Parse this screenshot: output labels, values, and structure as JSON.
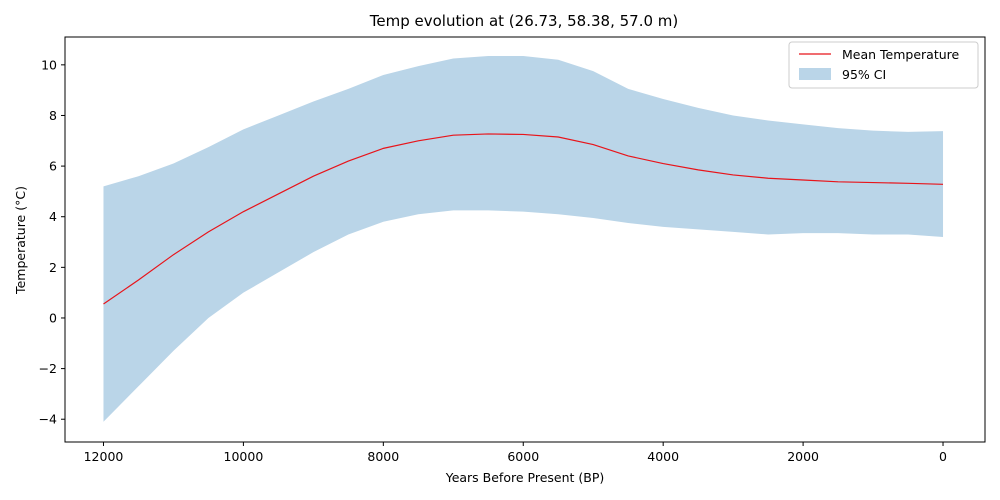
{
  "chart_data": {
    "type": "area",
    "title": "Temp evolution at (26.73, 58.38, 57.0 m)",
    "xlabel": "Years Before Present (BP)",
    "ylabel": "Temperature (°C)",
    "x_reversed": true,
    "xlim": [
      12550,
      -600
    ],
    "ylim": [
      -4.9,
      11.1
    ],
    "xticks": [
      12000,
      10000,
      8000,
      6000,
      4000,
      2000,
      0
    ],
    "yticks": [
      -4,
      -2,
      0,
      2,
      4,
      6,
      8,
      10
    ],
    "grid": false,
    "legend_position": "top-right",
    "x": [
      12000,
      11500,
      11000,
      10500,
      10000,
      9500,
      9000,
      8500,
      8000,
      7500,
      7000,
      6500,
      6000,
      5500,
      5000,
      4500,
      4000,
      3500,
      3000,
      2500,
      2000,
      1500,
      1000,
      500,
      0
    ],
    "series": [
      {
        "name": "Mean Temperature",
        "kind": "line",
        "color": "#e8141a",
        "values": [
          0.55,
          1.5,
          2.5,
          3.4,
          4.2,
          4.9,
          5.6,
          6.2,
          6.7,
          7.0,
          7.22,
          7.27,
          7.25,
          7.15,
          6.85,
          6.4,
          6.1,
          5.85,
          5.65,
          5.52,
          5.45,
          5.38,
          5.35,
          5.32,
          5.28
        ]
      },
      {
        "name": "95% CI",
        "kind": "band",
        "color": "#bad5e8",
        "lower": [
          -4.1,
          -2.7,
          -1.3,
          0.0,
          1.0,
          1.8,
          2.6,
          3.3,
          3.8,
          4.1,
          4.25,
          4.25,
          4.2,
          4.1,
          3.95,
          3.75,
          3.6,
          3.5,
          3.4,
          3.3,
          3.35,
          3.35,
          3.3,
          3.3,
          3.2
        ],
        "upper": [
          5.2,
          5.6,
          6.1,
          6.75,
          7.45,
          8.0,
          8.55,
          9.05,
          9.6,
          9.95,
          10.25,
          10.35,
          10.35,
          10.2,
          9.75,
          9.05,
          8.65,
          8.3,
          8.0,
          7.8,
          7.65,
          7.5,
          7.4,
          7.35,
          7.38
        ]
      }
    ]
  }
}
